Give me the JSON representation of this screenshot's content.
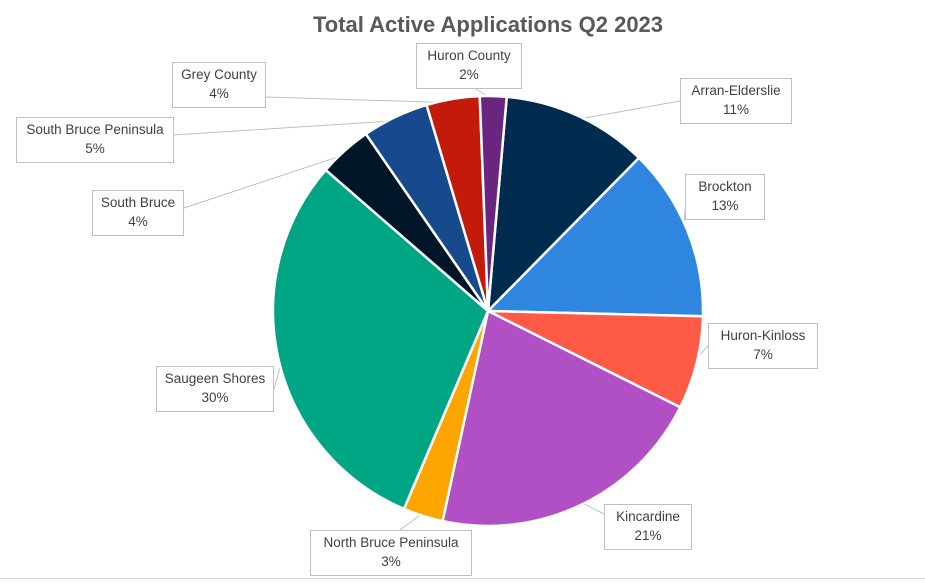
{
  "chart_data": {
    "type": "pie",
    "title": "Total Active Applications Q2 2023",
    "slices": [
      {
        "name": "Arran-Elderslie",
        "value": 11,
        "value_label": "11%",
        "color": "#002b4f"
      },
      {
        "name": "Brockton",
        "value": 13,
        "value_label": "13%",
        "color": "#2e86e0"
      },
      {
        "name": "Huron-Kinloss",
        "value": 7,
        "value_label": "7%",
        "color": "#ff5a45"
      },
      {
        "name": "Kincardine",
        "value": 21,
        "value_label": "21%",
        "color": "#b050c4"
      },
      {
        "name": "North Bruce Peninsula",
        "value": 3,
        "value_label": "3%",
        "color": "#ffa500"
      },
      {
        "name": "Saugeen Shores",
        "value": 30,
        "value_label": "30%",
        "color": "#00a584"
      },
      {
        "name": "South Bruce",
        "value": 4,
        "value_label": "4%",
        "color": "#001528"
      },
      {
        "name": "South Bruce Peninsula",
        "value": 5,
        "value_label": "5%",
        "color": "#174a8c"
      },
      {
        "name": "Grey County",
        "value": 4,
        "value_label": "4%",
        "color": "#c41a0c"
      },
      {
        "name": "Huron County",
        "value": 2,
        "value_label": "2%",
        "color": "#6a2580"
      }
    ]
  }
}
